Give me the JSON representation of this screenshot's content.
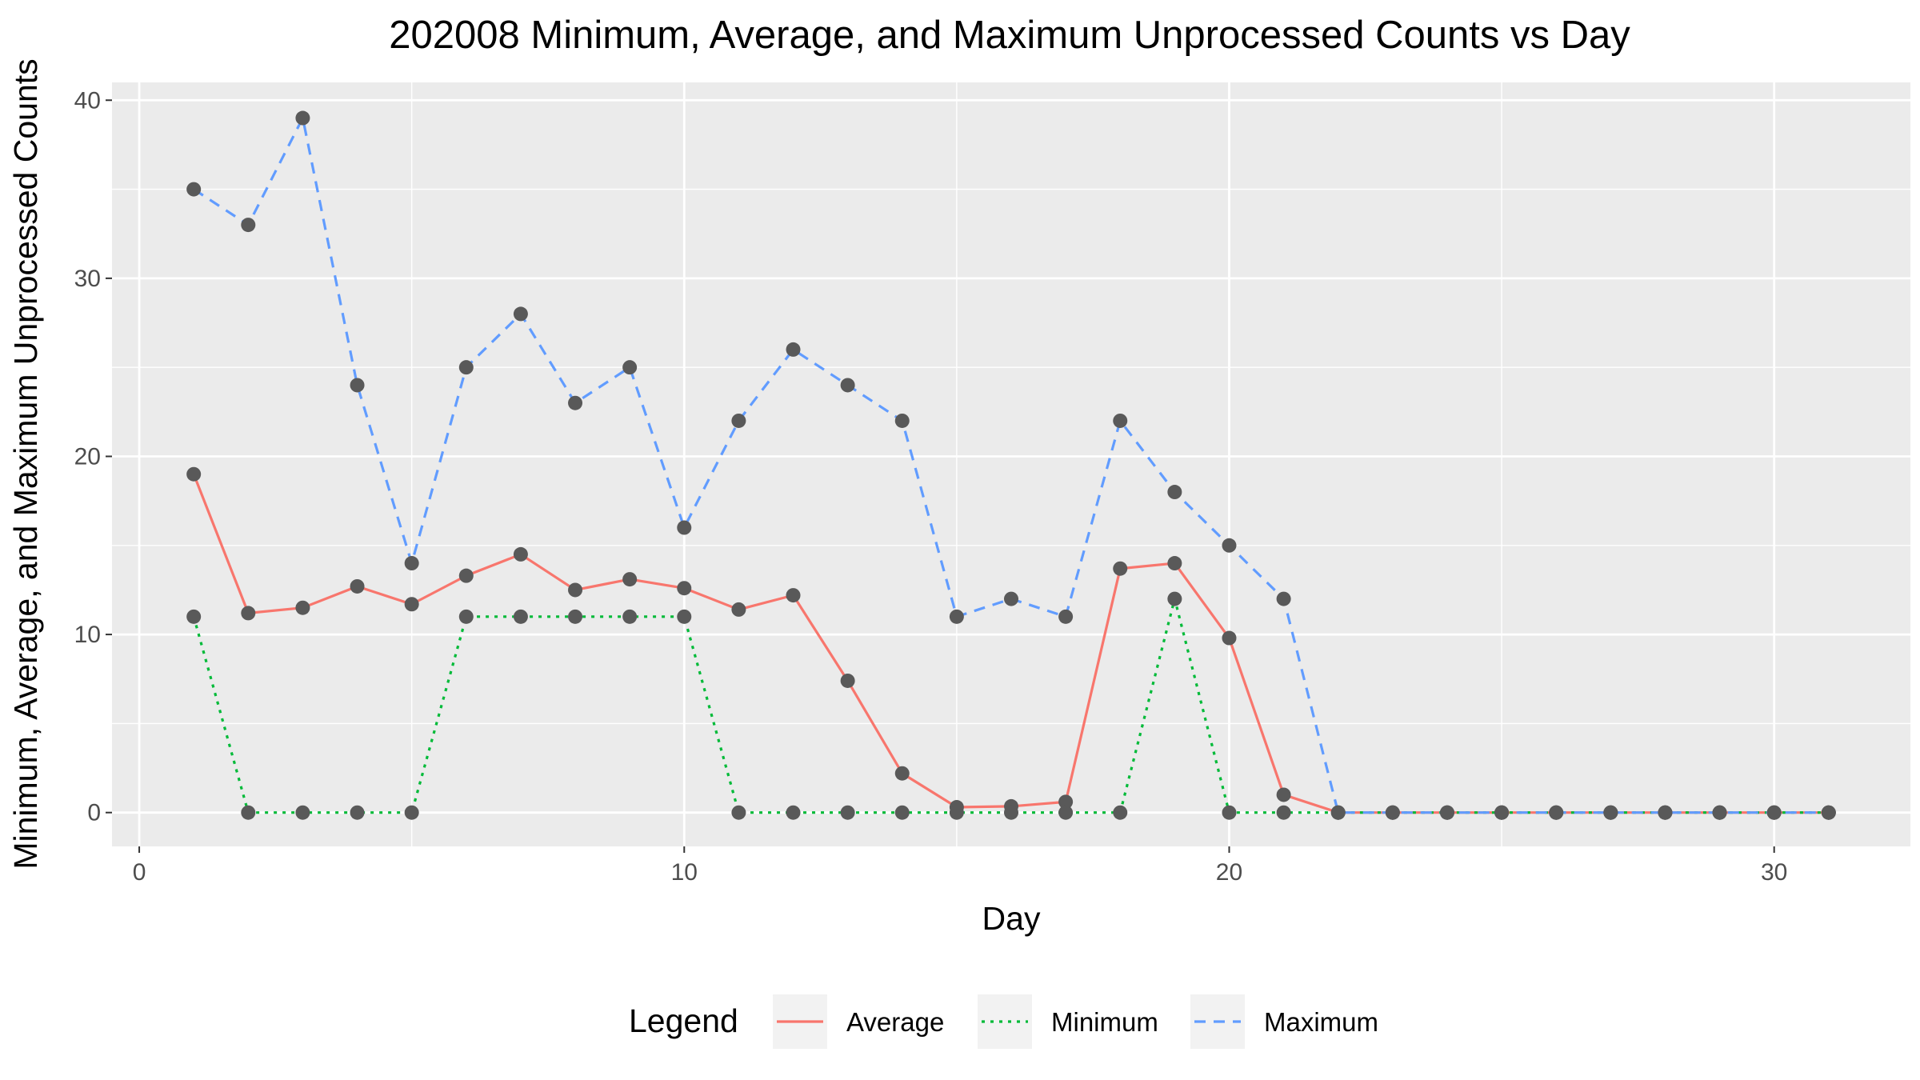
{
  "chart_data": {
    "type": "line",
    "title": "202008 Minimum, Average, and Maximum Unprocessed Counts vs Day",
    "xlabel": "Day",
    "ylabel": "Minimum, Average, and Maximum Unprocessed Counts",
    "xlim": [
      -0.5,
      32.5
    ],
    "ylim": [
      -1.9,
      41.0
    ],
    "x_ticks": [
      0,
      10,
      20,
      30
    ],
    "y_ticks": [
      0,
      10,
      20,
      30,
      40
    ],
    "grid": true,
    "legend": {
      "title": "Legend",
      "position": "bottom"
    },
    "x": [
      1,
      2,
      3,
      4,
      5,
      6,
      7,
      8,
      9,
      10,
      11,
      12,
      13,
      14,
      15,
      16,
      17,
      18,
      19,
      20,
      21,
      22,
      23,
      24,
      25,
      26,
      27,
      28,
      29,
      30,
      31
    ],
    "series": [
      {
        "name": "Average",
        "color": "#F8766D",
        "dash": "solid",
        "values": [
          19,
          11.2,
          11.5,
          12.7,
          11.7,
          13.3,
          14.5,
          12.5,
          13.1,
          12.6,
          11.4,
          12.2,
          7.4,
          2.2,
          0.3,
          0.35,
          0.6,
          13.7,
          14,
          9.8,
          1,
          0,
          0,
          0,
          0,
          0,
          0,
          0,
          0,
          0,
          0
        ]
      },
      {
        "name": "Minimum",
        "color": "#00BA38",
        "dash": "dotted",
        "values": [
          11,
          0,
          0,
          0,
          0,
          11,
          11,
          11,
          11,
          11,
          0,
          0,
          0,
          0,
          0,
          0,
          0,
          0,
          12,
          0,
          0,
          0,
          0,
          0,
          0,
          0,
          0,
          0,
          0,
          0,
          0
        ]
      },
      {
        "name": "Maximum",
        "color": "#619CFF",
        "dash": "dashed",
        "values": [
          35,
          33,
          39,
          24,
          14,
          25,
          28,
          23,
          25,
          16,
          22,
          26,
          24,
          22,
          11,
          12,
          11,
          22,
          18,
          15,
          12,
          0,
          0,
          0,
          0,
          0,
          0,
          0,
          0,
          0,
          0
        ]
      }
    ],
    "point_color": "#595959"
  }
}
